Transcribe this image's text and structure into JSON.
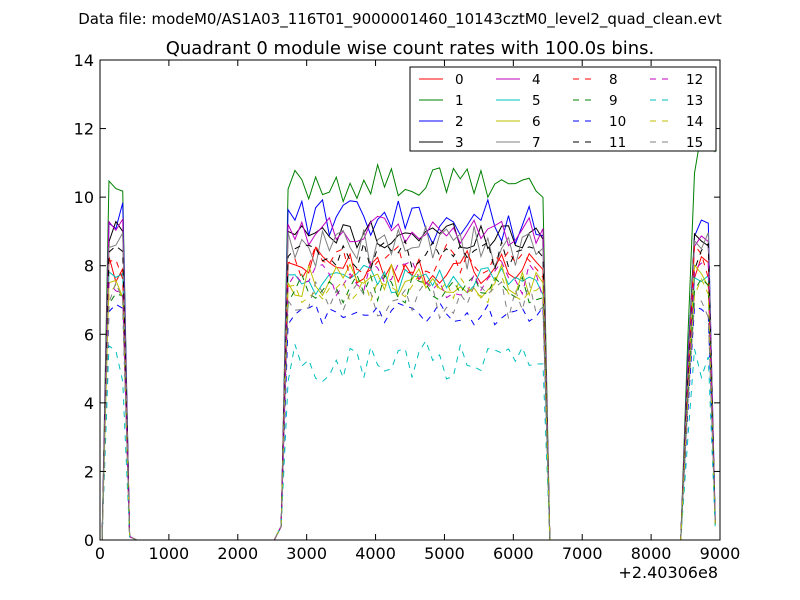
{
  "figure": {
    "suptitle": "Data file: modeM0/AS1A03_116T01_9000001460_10143cztM0_level2_quad_clean.evt"
  },
  "chart_data": {
    "type": "line",
    "title": "Quadrant 0 module wise count rates with 100.0s bins.",
    "xlabel": "",
    "ylabel": "",
    "xlim": [
      0,
      9000
    ],
    "ylim": [
      0,
      14
    ],
    "x_offset_label": "+2.40306e8",
    "xticks": [
      0,
      1000,
      2000,
      3000,
      4000,
      5000,
      6000,
      7000,
      8000,
      9000
    ],
    "yticks": [
      0,
      2,
      4,
      6,
      8,
      10,
      12,
      14
    ],
    "grid": false,
    "legend": {
      "placement": "top-right",
      "columns": 4
    },
    "segments": [
      {
        "x_start": 130,
        "x_end": 430,
        "step": 100
      },
      {
        "x_start": 2630,
        "x_end": 6430,
        "step": 100
      },
      {
        "x_start": 8530,
        "x_end": 8930,
        "step": 100
      }
    ],
    "series": [
      {
        "name": "0",
        "color": "#ff0000",
        "dash": "solid",
        "level": 8.0,
        "amp": 0.25
      },
      {
        "name": "1",
        "color": "#008000",
        "dash": "solid",
        "level": 10.4,
        "amp": 0.25
      },
      {
        "name": "2",
        "color": "#0000ff",
        "dash": "solid",
        "level": 9.3,
        "amp": 0.3
      },
      {
        "name": "3",
        "color": "#000000",
        "dash": "solid",
        "level": 8.9,
        "amp": 0.2
      },
      {
        "name": "4",
        "color": "#bf00bf",
        "dash": "solid",
        "level": 9.0,
        "amp": 0.2
      },
      {
        "name": "5",
        "color": "#00bfbf",
        "dash": "solid",
        "level": 7.6,
        "amp": 0.2
      },
      {
        "name": "6",
        "color": "#bfbf00",
        "dash": "solid",
        "level": 7.5,
        "amp": 0.25
      },
      {
        "name": "7",
        "color": "#808080",
        "dash": "solid",
        "level": 8.5,
        "amp": 0.3
      },
      {
        "name": "8",
        "color": "#ff0000",
        "dash": "dashed",
        "level": 8.1,
        "amp": 0.25
      },
      {
        "name": "9",
        "color": "#008000",
        "dash": "dashed",
        "level": 7.3,
        "amp": 0.2
      },
      {
        "name": "10",
        "color": "#0000ff",
        "dash": "dashed",
        "level": 6.6,
        "amp": 0.15
      },
      {
        "name": "11",
        "color": "#000000",
        "dash": "dashed",
        "level": 8.3,
        "amp": 0.2
      },
      {
        "name": "12",
        "color": "#bf00bf",
        "dash": "dashed",
        "level": 7.6,
        "amp": 0.25
      },
      {
        "name": "13",
        "color": "#00bfbf",
        "dash": "dashed",
        "level": 5.2,
        "amp": 0.3
      },
      {
        "name": "14",
        "color": "#bfbf00",
        "dash": "dashed",
        "level": 7.3,
        "amp": 0.2
      },
      {
        "name": "15",
        "color": "#808080",
        "dash": "dashed",
        "level": 7.0,
        "amp": 0.25
      }
    ]
  }
}
